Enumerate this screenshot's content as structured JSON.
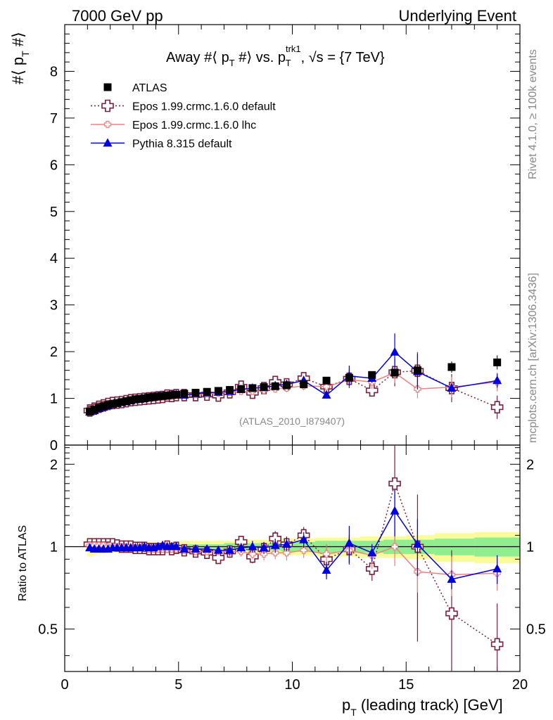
{
  "header": {
    "left": "7000 GeV pp",
    "right": "Underlying Event"
  },
  "side": {
    "rivet": "Rivet 4.1.0, ≥ 100k events",
    "mcplots": "mcplots.cern.ch [arXiv:1306.3436]"
  },
  "plot": {
    "title_main": "Away #⟨ p",
    "title_sub1": "T",
    "title_mid": " #⟩ vs. p",
    "title_sup": "trk1",
    "title_sub2": "T",
    "title_end": ", √s = {7 TeV}",
    "ylabel_main": "#⟨ p",
    "ylabel_sub": "T",
    "ylabel_end": " #⟩",
    "watermark": "(ATLAS_2010_I879407)",
    "ratio_ylabel": "Ratio to ATLAS",
    "xlabel_main": "p",
    "xlabel_sub": "T",
    "xlabel_end": " (leading track) [GeV]"
  },
  "colors": {
    "atlas": "#000000",
    "epos_default": "#7a1f3d",
    "epos_lhc": "#f08080",
    "pythia": "#0000dd",
    "band_yellow": "#fbfb9a",
    "band_green": "#90ee90"
  },
  "chart_data": {
    "type": "scatter",
    "xlabel": "pT (leading track) [GeV]",
    "ylabel": "#<pT#>",
    "xlim": [
      0,
      20
    ],
    "ylim": [
      0,
      9
    ],
    "ratio_ylim": [
      0.35,
      2.35
    ],
    "x_ticks": [
      "0",
      "5",
      "10",
      "15",
      "20"
    ],
    "y_ticks": [
      "0",
      "1",
      "2",
      "3",
      "4",
      "5",
      "6",
      "7",
      "8"
    ],
    "ratio_ticks": [
      "0.5",
      "1",
      "2"
    ],
    "legend": [
      {
        "name": "ATLAS",
        "marker": "square"
      },
      {
        "name": "Epos 1.99.crmc.1.6.0 default",
        "marker": "open-cross"
      },
      {
        "name": "Epos 1.99.crmc.1.6.0 lhc",
        "marker": "small-cross"
      },
      {
        "name": "Pythia 8.315 default",
        "marker": "triangle"
      }
    ],
    "x": [
      1.1,
      1.3,
      1.5,
      1.7,
      1.9,
      2.1,
      2.3,
      2.5,
      2.7,
      2.9,
      3.1,
      3.3,
      3.5,
      3.7,
      3.9,
      4.1,
      4.3,
      4.5,
      4.7,
      4.9,
      5.25,
      5.75,
      6.25,
      6.75,
      7.25,
      7.75,
      8.25,
      8.75,
      9.25,
      9.75,
      10.5,
      11.5,
      12.5,
      13.5,
      14.5,
      15.5,
      17.0,
      19.0
    ],
    "atlas": [
      0.72,
      0.76,
      0.8,
      0.83,
      0.86,
      0.88,
      0.9,
      0.92,
      0.94,
      0.96,
      0.98,
      0.99,
      1.0,
      1.02,
      1.03,
      1.04,
      1.05,
      1.06,
      1.07,
      1.08,
      1.1,
      1.12,
      1.14,
      1.16,
      1.18,
      1.2,
      1.22,
      1.24,
      1.26,
      1.28,
      1.3,
      1.38,
      1.44,
      1.5,
      1.55,
      1.6,
      1.67,
      1.77
    ],
    "atlas_err": [
      0.01,
      0.01,
      0.01,
      0.01,
      0.01,
      0.01,
      0.01,
      0.01,
      0.01,
      0.01,
      0.01,
      0.01,
      0.01,
      0.01,
      0.01,
      0.01,
      0.01,
      0.01,
      0.01,
      0.01,
      0.02,
      0.02,
      0.02,
      0.02,
      0.02,
      0.02,
      0.03,
      0.03,
      0.03,
      0.03,
      0.04,
      0.05,
      0.06,
      0.07,
      0.08,
      0.09,
      0.12,
      0.15
    ],
    "series": [
      {
        "name": "Epos 1.99.crmc.1.6.0 default",
        "values": [
          0.74,
          0.78,
          0.82,
          0.85,
          0.88,
          0.9,
          0.91,
          0.92,
          0.94,
          0.96,
          0.97,
          0.98,
          0.99,
          1.0,
          1.01,
          1.02,
          1.03,
          1.06,
          1.05,
          1.07,
          1.07,
          1.07,
          1.08,
          1.06,
          1.13,
          1.25,
          1.12,
          1.22,
          1.35,
          1.3,
          1.43,
          1.25,
          1.42,
          1.17,
          1.56,
          1.59,
          1.22,
          0.81
        ],
        "errors": [
          0.02,
          0.02,
          0.02,
          0.02,
          0.02,
          0.02,
          0.02,
          0.02,
          0.02,
          0.02,
          0.02,
          0.02,
          0.02,
          0.02,
          0.02,
          0.02,
          0.02,
          0.03,
          0.03,
          0.03,
          0.04,
          0.04,
          0.05,
          0.05,
          0.06,
          0.06,
          0.07,
          0.08,
          0.1,
          0.1,
          0.12,
          0.18,
          0.2,
          0.12,
          0.3,
          0.4,
          0.3,
          0.25
        ]
      },
      {
        "name": "Epos 1.99.crmc.1.6.0 lhc",
        "values": [
          0.73,
          0.77,
          0.81,
          0.84,
          0.86,
          0.88,
          0.9,
          0.92,
          0.93,
          0.95,
          0.97,
          0.98,
          0.99,
          1.0,
          1.01,
          1.02,
          1.03,
          1.04,
          1.05,
          1.06,
          1.07,
          1.08,
          1.1,
          1.11,
          1.13,
          1.15,
          1.15,
          1.17,
          1.2,
          1.22,
          1.27,
          1.25,
          1.4,
          1.35,
          1.55,
          1.2,
          1.24,
          1.35
        ],
        "errors": [
          0.02,
          0.02,
          0.02,
          0.02,
          0.02,
          0.02,
          0.02,
          0.02,
          0.02,
          0.02,
          0.02,
          0.02,
          0.02,
          0.02,
          0.02,
          0.02,
          0.02,
          0.03,
          0.03,
          0.03,
          0.03,
          0.04,
          0.04,
          0.05,
          0.05,
          0.06,
          0.06,
          0.07,
          0.08,
          0.09,
          0.1,
          0.12,
          0.14,
          0.15,
          0.22,
          0.2,
          0.22,
          0.2
        ]
      },
      {
        "name": "Pythia 8.315 default",
        "values": [
          0.71,
          0.74,
          0.78,
          0.81,
          0.84,
          0.87,
          0.89,
          0.91,
          0.93,
          0.95,
          0.97,
          0.98,
          1.0,
          1.01,
          1.02,
          1.04,
          1.05,
          1.06,
          1.07,
          1.08,
          1.07,
          1.1,
          1.12,
          1.13,
          1.15,
          1.19,
          1.22,
          1.23,
          1.27,
          1.3,
          1.38,
          1.07,
          1.48,
          1.43,
          1.99,
          1.57,
          1.22,
          1.38
        ],
        "errors": [
          0.01,
          0.01,
          0.01,
          0.01,
          0.01,
          0.01,
          0.01,
          0.01,
          0.01,
          0.01,
          0.01,
          0.01,
          0.01,
          0.01,
          0.02,
          0.02,
          0.02,
          0.02,
          0.02,
          0.02,
          0.03,
          0.03,
          0.04,
          0.04,
          0.05,
          0.05,
          0.06,
          0.06,
          0.07,
          0.08,
          0.1,
          0.06,
          0.22,
          0.1,
          0.4,
          0.38,
          0.1,
          0.15
        ]
      }
    ],
    "ratio_series": [
      {
        "name": "Epos 1.99.crmc.1.6.0 default",
        "values": [
          1.02,
          1.02,
          1.02,
          1.02,
          1.02,
          1.02,
          1.01,
          1.0,
          1.0,
          1.0,
          0.99,
          0.99,
          0.99,
          0.98,
          0.98,
          0.98,
          0.98,
          1.0,
          0.98,
          0.99,
          0.97,
          0.96,
          0.95,
          0.91,
          0.96,
          1.04,
          0.92,
          0.98,
          1.07,
          1.02,
          1.1,
          0.9,
          0.98,
          0.83,
          1.7,
          1.0,
          0.57,
          0.44
        ],
        "errors": [
          0.02,
          0.02,
          0.02,
          0.02,
          0.02,
          0.02,
          0.02,
          0.02,
          0.02,
          0.02,
          0.02,
          0.02,
          0.02,
          0.02,
          0.02,
          0.02,
          0.02,
          0.03,
          0.03,
          0.03,
          0.03,
          0.03,
          0.04,
          0.04,
          0.05,
          0.05,
          0.05,
          0.06,
          0.07,
          0.07,
          0.08,
          0.12,
          0.12,
          0.08,
          0.65,
          0.55,
          0.4,
          0.18
        ]
      },
      {
        "name": "Epos 1.99.crmc.1.6.0 lhc",
        "values": [
          1.01,
          1.01,
          1.01,
          1.01,
          1.0,
          1.0,
          1.0,
          1.0,
          0.99,
          0.99,
          0.99,
          0.99,
          0.99,
          0.98,
          0.98,
          0.98,
          0.98,
          0.98,
          0.98,
          0.98,
          0.97,
          0.96,
          0.96,
          0.96,
          0.96,
          0.96,
          0.94,
          0.94,
          0.95,
          0.95,
          0.97,
          0.94,
          0.97,
          0.93,
          1.0,
          0.81,
          0.79,
          0.8
        ],
        "errors": [
          0.02,
          0.02,
          0.02,
          0.02,
          0.02,
          0.02,
          0.02,
          0.02,
          0.02,
          0.02,
          0.02,
          0.02,
          0.02,
          0.02,
          0.02,
          0.02,
          0.02,
          0.02,
          0.02,
          0.02,
          0.03,
          0.03,
          0.03,
          0.03,
          0.04,
          0.04,
          0.04,
          0.05,
          0.05,
          0.06,
          0.06,
          0.08,
          0.09,
          0.1,
          0.15,
          0.13,
          0.13,
          0.11
        ]
      },
      {
        "name": "Pythia 8.315 default",
        "values": [
          0.99,
          0.98,
          0.98,
          0.98,
          0.98,
          0.99,
          0.99,
          0.99,
          0.99,
          0.99,
          0.99,
          0.99,
          1.0,
          0.99,
          0.99,
          1.0,
          1.01,
          1.0,
          1.0,
          1.0,
          0.98,
          0.98,
          0.98,
          0.97,
          0.97,
          0.99,
          1.0,
          0.99,
          1.01,
          1.02,
          1.06,
          0.82,
          1.03,
          0.95,
          1.35,
          1.02,
          0.76,
          0.83
        ],
        "errors": [
          0.01,
          0.01,
          0.01,
          0.01,
          0.01,
          0.01,
          0.01,
          0.01,
          0.01,
          0.01,
          0.01,
          0.01,
          0.01,
          0.01,
          0.02,
          0.02,
          0.02,
          0.02,
          0.02,
          0.02,
          0.02,
          0.03,
          0.03,
          0.03,
          0.04,
          0.04,
          0.05,
          0.05,
          0.06,
          0.06,
          0.07,
          0.06,
          0.16,
          0.07,
          0.26,
          0.24,
          0.06,
          0.1
        ]
      }
    ],
    "ratio_band_yellow": [
      0.08,
      0.07,
      0.06,
      0.06,
      0.05,
      0.05,
      0.05,
      0.05,
      0.05,
      0.05,
      0.04,
      0.04,
      0.04,
      0.04,
      0.04,
      0.04,
      0.04,
      0.04,
      0.04,
      0.04,
      0.05,
      0.05,
      0.05,
      0.05,
      0.05,
      0.05,
      0.06,
      0.06,
      0.06,
      0.07,
      0.07,
      0.08,
      0.08,
      0.09,
      0.09,
      0.1,
      0.12,
      0.13
    ],
    "ratio_band_green": [
      0.03,
      0.03,
      0.02,
      0.02,
      0.02,
      0.02,
      0.02,
      0.02,
      0.02,
      0.02,
      0.02,
      0.02,
      0.02,
      0.02,
      0.02,
      0.02,
      0.02,
      0.02,
      0.02,
      0.02,
      0.02,
      0.02,
      0.02,
      0.02,
      0.03,
      0.03,
      0.03,
      0.03,
      0.03,
      0.04,
      0.04,
      0.05,
      0.05,
      0.05,
      0.06,
      0.06,
      0.07,
      0.08
    ]
  }
}
